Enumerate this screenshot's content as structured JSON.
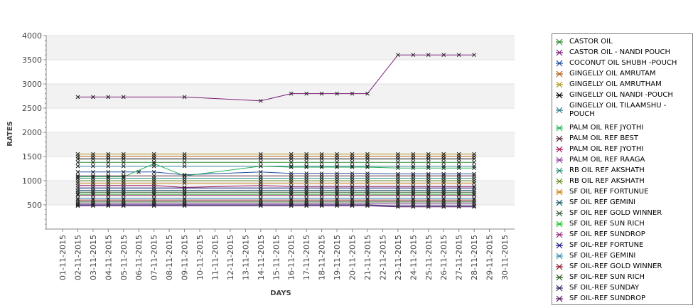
{
  "chart_data": {
    "type": "line",
    "title": "",
    "xlabel": "DAYS",
    "ylabel": "RATES",
    "ylim": [
      0,
      4000
    ],
    "yticks": [
      500,
      1000,
      1500,
      2000,
      2500,
      3000,
      3500,
      4000
    ],
    "x": [
      "01-11-2015",
      "02-11-2015",
      "03-11-2015",
      "04-11-2015",
      "05-11-2015",
      "06-11-2015",
      "07-11-2015",
      "08-11-2015",
      "09-11-2015",
      "10-11-2015",
      "11-11-2015",
      "12-11-2015",
      "13-11-2015",
      "14-11-2015",
      "15-11-2015",
      "16-11-2015",
      "17-11-2015",
      "18-11-2015",
      "19-11-2015",
      "20-11-2015",
      "21-11-2015",
      "22-11-2015",
      "23-11-2015",
      "24-11-2015",
      "25-11-2015",
      "26-11-2015",
      "27-11-2015",
      "28-11-2015",
      "29-11-2015",
      "30-11-2015"
    ],
    "grid": false,
    "legend_position": "right",
    "series": [
      {
        "name": "CASTOR OIL",
        "color": "#2e8b2e",
        "values": [
          null,
          1380,
          1380,
          1380,
          1380,
          null,
          1380,
          null,
          1380,
          null,
          null,
          null,
          null,
          1380,
          null,
          1380,
          1380,
          1380,
          1380,
          1380,
          1380,
          null,
          1380,
          1380,
          1380,
          1380,
          1380,
          1380,
          null,
          null
        ]
      },
      {
        "name": "CASTOR OIL - NANDI POUCH",
        "color": "#7b1e7b",
        "values": [
          null,
          2730,
          2730,
          2730,
          2730,
          null,
          null,
          null,
          2730,
          null,
          null,
          null,
          null,
          2650,
          null,
          2800,
          2800,
          2800,
          2800,
          2800,
          2800,
          null,
          3600,
          3600,
          3600,
          3600,
          3600,
          3600,
          null,
          null
        ]
      },
      {
        "name": "COCONUT OIL SHUBH -POUCH",
        "color": "#1f4f9f",
        "values": [
          null,
          1180,
          1180,
          1180,
          1180,
          1180,
          1180,
          null,
          1120,
          null,
          null,
          null,
          null,
          1180,
          null,
          1150,
          1150,
          1150,
          1150,
          1150,
          1150,
          null,
          1140,
          1140,
          1140,
          1140,
          1140,
          1140,
          null,
          null
        ]
      },
      {
        "name": "GINGELLY OIL AMRUTAM",
        "color": "#b25f1a",
        "values": [
          null,
          1500,
          1500,
          1500,
          1500,
          null,
          1500,
          null,
          1500,
          null,
          null,
          null,
          null,
          1500,
          null,
          1500,
          1500,
          1500,
          1500,
          1500,
          1500,
          null,
          1500,
          1500,
          1500,
          1500,
          1500,
          1500,
          null,
          null
        ]
      },
      {
        "name": "GINGELLY OIL AMRUTHAM",
        "color": "#b29a1a",
        "values": [
          null,
          1550,
          1550,
          1550,
          1550,
          null,
          1550,
          null,
          1550,
          null,
          null,
          null,
          null,
          1550,
          null,
          1550,
          1550,
          1550,
          1550,
          1550,
          1550,
          null,
          1550,
          1550,
          1550,
          1550,
          1550,
          1550,
          null,
          null
        ]
      },
      {
        "name": "GINGELLY OIL NANDI -POUCH",
        "color": "#000000",
        "values": [
          null,
          1450,
          1450,
          1450,
          1450,
          null,
          1450,
          null,
          1450,
          null,
          null,
          null,
          null,
          1450,
          null,
          1450,
          1450,
          1450,
          1450,
          1450,
          1450,
          null,
          1450,
          1450,
          1450,
          1450,
          1450,
          1450,
          null,
          null
        ]
      },
      {
        "name": "GINGELLY OIL TILAAMSHU -POUCH",
        "color": "#2f7f8f",
        "values": [
          null,
          1300,
          1300,
          1300,
          1300,
          null,
          1300,
          null,
          1300,
          null,
          null,
          null,
          null,
          1300,
          null,
          1300,
          1300,
          1300,
          1300,
          1300,
          1300,
          null,
          1300,
          1300,
          1300,
          1300,
          1300,
          1300,
          null,
          null
        ]
      },
      {
        "name": "PALM OIL REF  JYOTHI",
        "color": "#27b05a",
        "values": [
          null,
          1080,
          1080,
          1080,
          1080,
          null,
          1350,
          null,
          1100,
          null,
          null,
          null,
          null,
          1300,
          null,
          1280,
          1280,
          1280,
          1280,
          1280,
          1280,
          null,
          1260,
          1260,
          1260,
          1260,
          1260,
          1260,
          null,
          null
        ]
      },
      {
        "name": "PALM OIL REF BEST",
        "color": "#5a2a3a",
        "values": [
          null,
          1100,
          1100,
          1100,
          1100,
          null,
          1100,
          null,
          1100,
          null,
          null,
          null,
          null,
          1100,
          null,
          1100,
          1100,
          1100,
          1100,
          1100,
          1100,
          null,
          1100,
          1100,
          1100,
          1100,
          1100,
          1100,
          null,
          null
        ]
      },
      {
        "name": "PALM OIL REF JYOTHI",
        "color": "#a0185a",
        "values": [
          null,
          900,
          900,
          900,
          900,
          null,
          900,
          null,
          860,
          null,
          null,
          null,
          null,
          900,
          null,
          880,
          880,
          880,
          880,
          880,
          880,
          null,
          880,
          880,
          880,
          880,
          880,
          880,
          null,
          null
        ]
      },
      {
        "name": "PALM OIL REF RAAGA",
        "color": "#8f3fa0",
        "values": [
          null,
          520,
          520,
          520,
          520,
          null,
          520,
          null,
          520,
          null,
          null,
          null,
          null,
          520,
          null,
          520,
          520,
          520,
          520,
          520,
          520,
          null,
          520,
          520,
          520,
          520,
          520,
          520,
          null,
          null
        ]
      },
      {
        "name": "RB OIL REF  AKSHATH",
        "color": "#2a8f7a",
        "values": [
          null,
          1050,
          1050,
          1050,
          1050,
          null,
          1050,
          null,
          1050,
          null,
          null,
          null,
          null,
          1050,
          null,
          1050,
          1050,
          1050,
          1050,
          1050,
          1050,
          null,
          1050,
          1050,
          1050,
          1050,
          1050,
          1050,
          null,
          null
        ]
      },
      {
        "name": "RB OIL REF AKSHATH",
        "color": "#6a8f2a",
        "values": [
          null,
          1000,
          1000,
          1000,
          1000,
          null,
          1000,
          null,
          1000,
          null,
          null,
          null,
          null,
          1000,
          null,
          1000,
          1000,
          1000,
          1000,
          1000,
          1000,
          null,
          1000,
          1000,
          1000,
          1000,
          1000,
          1000,
          null,
          null
        ]
      },
      {
        "name": "SF OIL REF FORTUNUE",
        "color": "#c8821e",
        "values": [
          null,
          950,
          950,
          950,
          950,
          null,
          950,
          null,
          950,
          null,
          null,
          null,
          null,
          950,
          null,
          950,
          950,
          950,
          950,
          950,
          950,
          null,
          950,
          950,
          950,
          950,
          950,
          950,
          null,
          null
        ]
      },
      {
        "name": "SF OIL REF GEMINI",
        "color": "#1e5a6a",
        "values": [
          null,
          800,
          800,
          800,
          800,
          null,
          800,
          null,
          800,
          null,
          null,
          null,
          null,
          800,
          null,
          800,
          800,
          800,
          800,
          800,
          800,
          null,
          800,
          800,
          800,
          800,
          800,
          800,
          null,
          null
        ]
      },
      {
        "name": "SF OIL REF GOLD WINNER",
        "color": "#3f5f3f",
        "values": [
          null,
          760,
          760,
          760,
          760,
          null,
          760,
          null,
          760,
          null,
          null,
          null,
          null,
          760,
          null,
          760,
          760,
          760,
          760,
          760,
          760,
          null,
          760,
          760,
          760,
          760,
          760,
          760,
          null,
          null
        ]
      },
      {
        "name": "SF OIL REF SUN RICH",
        "color": "#22c022",
        "values": [
          null,
          720,
          720,
          720,
          720,
          null,
          720,
          null,
          720,
          null,
          null,
          null,
          null,
          720,
          null,
          720,
          720,
          720,
          720,
          720,
          720,
          null,
          720,
          720,
          720,
          720,
          720,
          720,
          null,
          null
        ]
      },
      {
        "name": "SF OIL REF SUNDROP",
        "color": "#9a2a7a",
        "values": [
          null,
          700,
          700,
          700,
          700,
          null,
          700,
          null,
          700,
          null,
          null,
          null,
          null,
          700,
          null,
          700,
          700,
          700,
          700,
          700,
          700,
          null,
          700,
          700,
          700,
          700,
          700,
          700,
          null,
          null
        ]
      },
      {
        "name": "SF OIL-REF FORTUNE",
        "color": "#1a1a8a",
        "values": [
          null,
          850,
          850,
          850,
          850,
          null,
          850,
          null,
          850,
          null,
          null,
          null,
          null,
          850,
          null,
          850,
          850,
          850,
          850,
          850,
          850,
          null,
          850,
          850,
          850,
          850,
          850,
          850,
          null,
          null
        ]
      },
      {
        "name": "SF OIL-REF GEMINI",
        "color": "#3a8fb0",
        "values": [
          null,
          630,
          630,
          630,
          630,
          null,
          630,
          null,
          630,
          null,
          null,
          null,
          null,
          630,
          null,
          630,
          630,
          630,
          630,
          630,
          630,
          null,
          630,
          630,
          630,
          630,
          630,
          630,
          null,
          null
        ]
      },
      {
        "name": "SF OIL-REF GOLD WINNER",
        "color": "#8a1a2a",
        "values": [
          null,
          600,
          600,
          600,
          600,
          null,
          600,
          null,
          600,
          null,
          null,
          null,
          null,
          600,
          null,
          600,
          600,
          600,
          600,
          600,
          600,
          null,
          600,
          600,
          600,
          600,
          600,
          600,
          null,
          null
        ]
      },
      {
        "name": "SF OIL-REF SUN RICH",
        "color": "#2a5a1a",
        "values": [
          null,
          560,
          560,
          560,
          560,
          null,
          560,
          null,
          560,
          null,
          null,
          null,
          null,
          560,
          null,
          560,
          560,
          560,
          560,
          560,
          560,
          null,
          560,
          560,
          560,
          560,
          560,
          560,
          null,
          null
        ]
      },
      {
        "name": "SF OIL-REF SUNDAY",
        "color": "#2a2a6a",
        "values": [
          null,
          500,
          500,
          500,
          500,
          null,
          500,
          null,
          500,
          null,
          null,
          null,
          null,
          500,
          null,
          500,
          500,
          500,
          500,
          500,
          500,
          null,
          480,
          480,
          480,
          480,
          480,
          480,
          null,
          null
        ]
      },
      {
        "name": "SF OIL-REF SUNDROP",
        "color": "#5a1a6a",
        "values": [
          null,
          480,
          480,
          480,
          480,
          null,
          480,
          null,
          480,
          null,
          null,
          null,
          null,
          480,
          null,
          480,
          480,
          480,
          480,
          480,
          480,
          null,
          460,
          460,
          460,
          460,
          460,
          460,
          null,
          null
        ]
      }
    ]
  }
}
